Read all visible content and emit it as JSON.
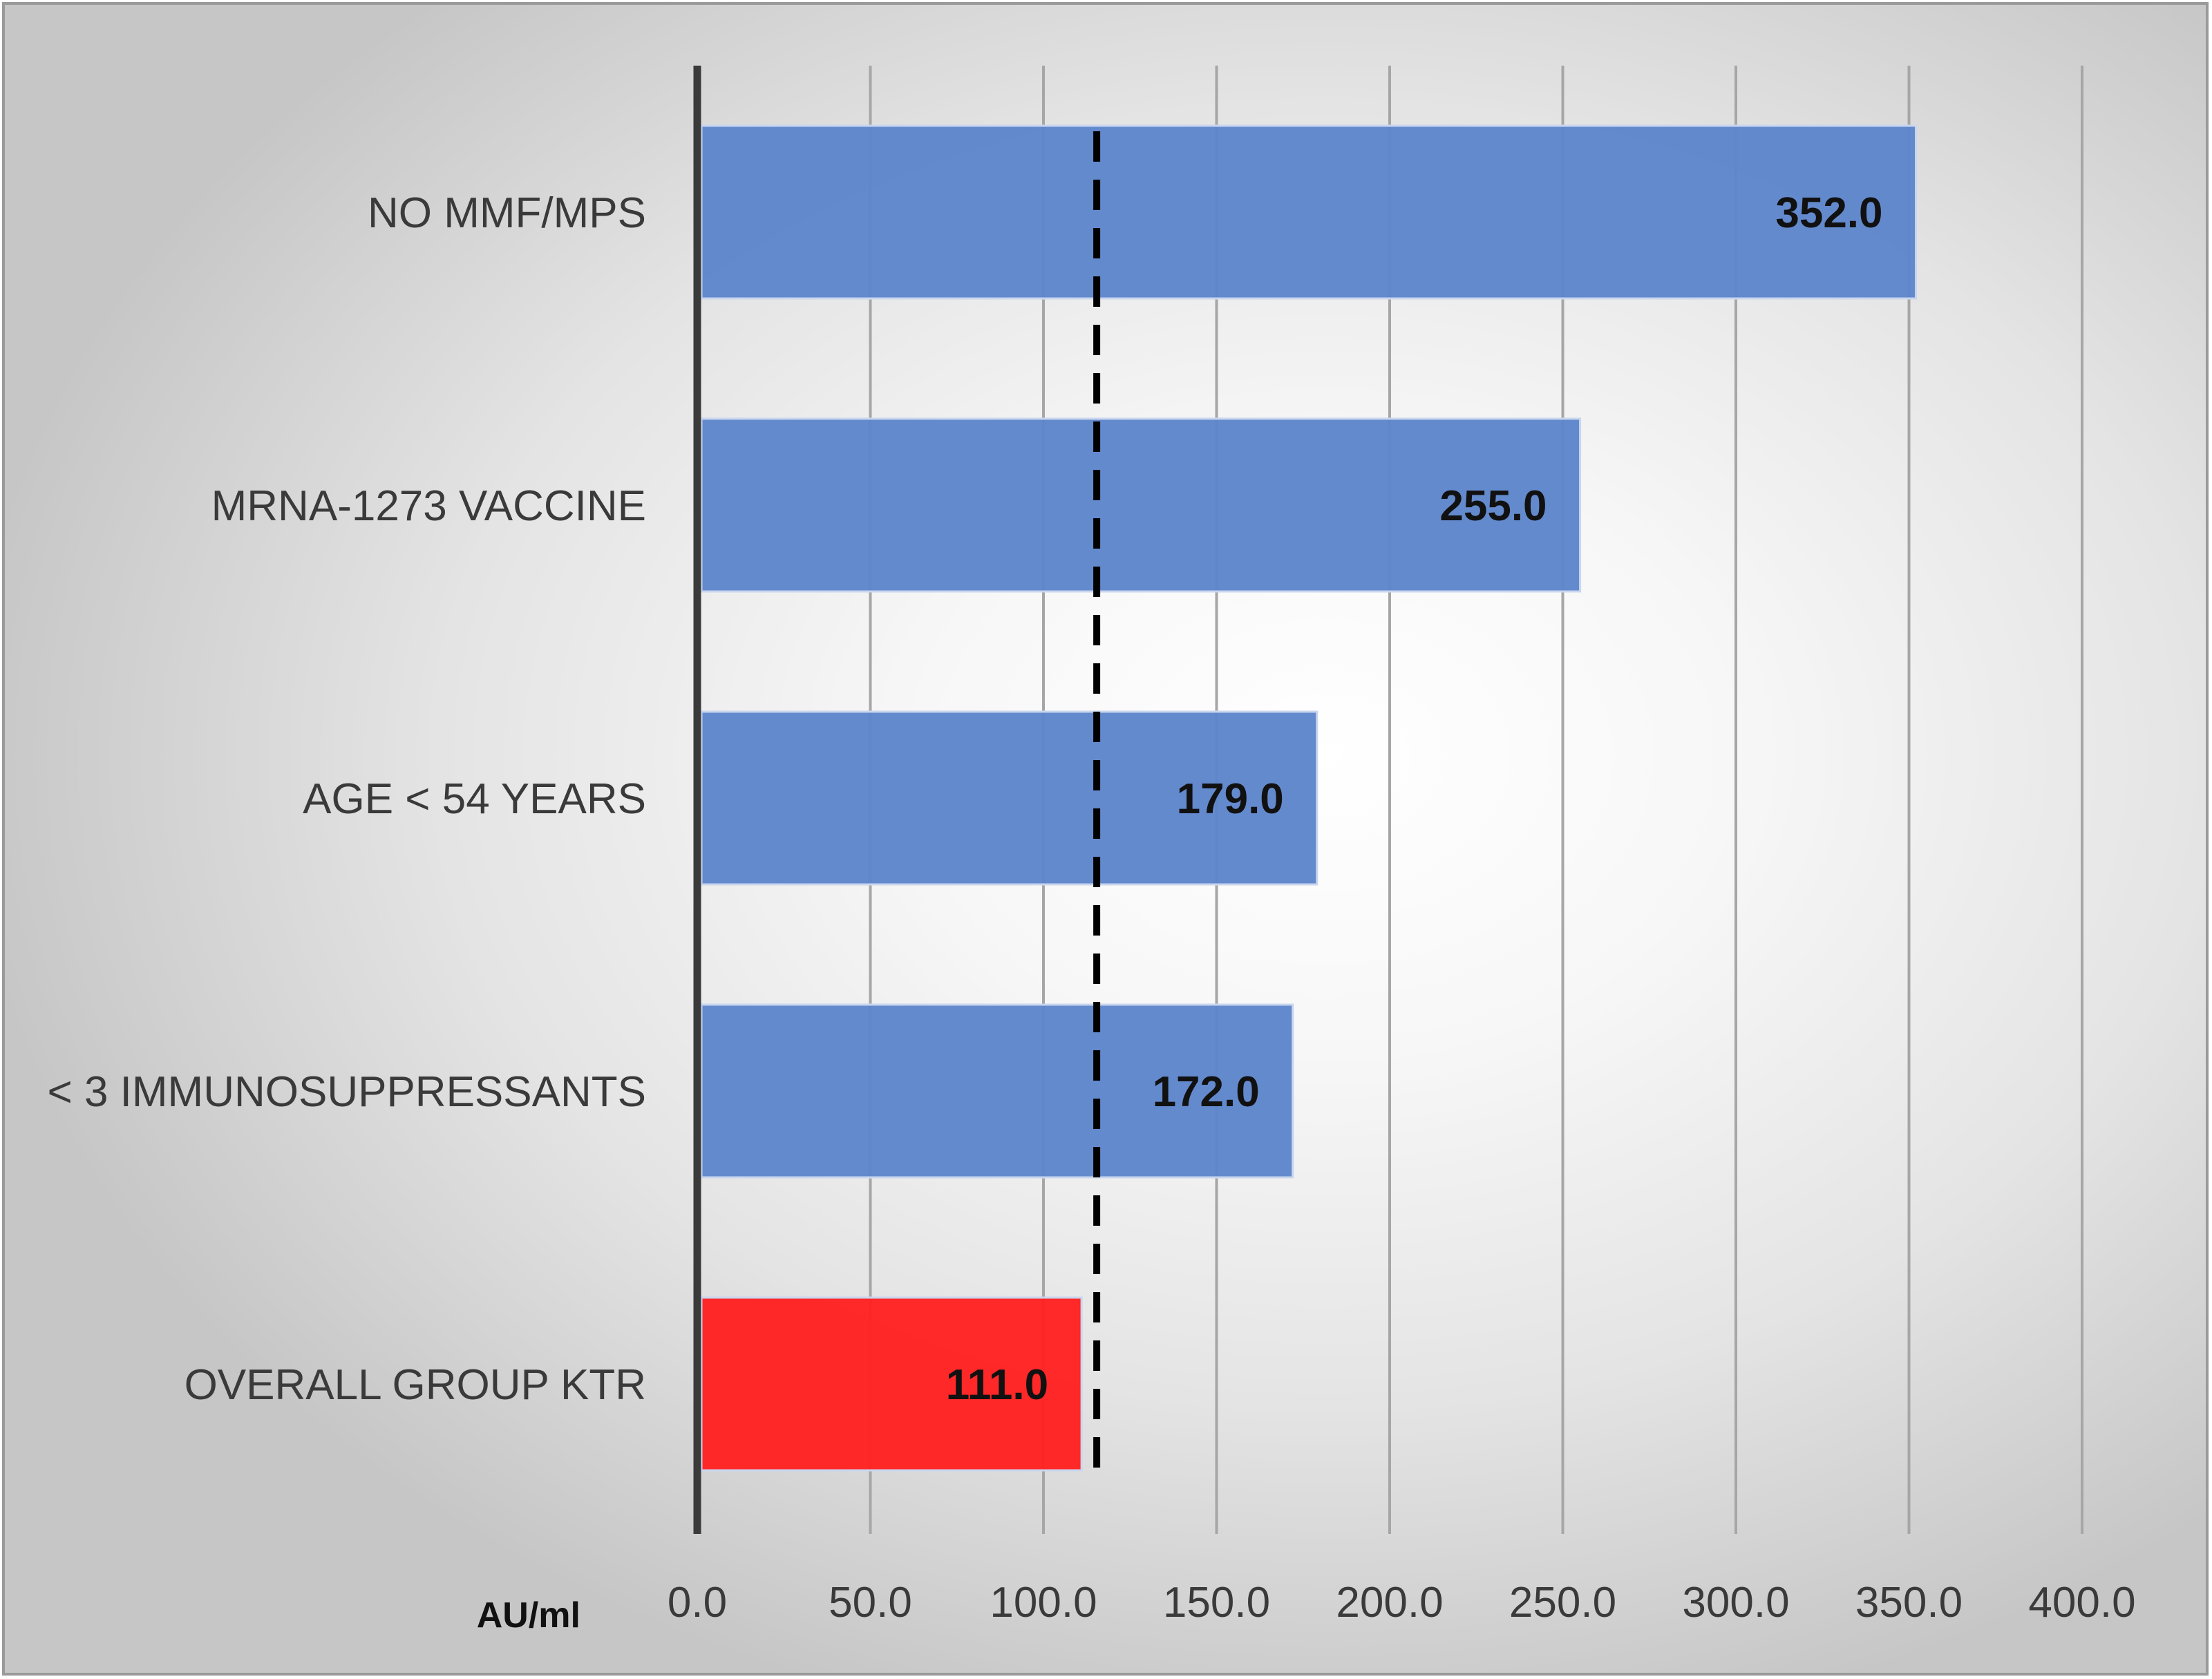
{
  "chart_data": {
    "type": "bar",
    "orientation": "horizontal",
    "categories": [
      "NO MMF/MPS",
      "MRNA-1273 VACCINE",
      "AGE < 54 YEARS",
      "< 3 IMMUNOSUPPRESSANTS",
      "OVERALL GROUP KTR"
    ],
    "values": [
      352.0,
      255.0,
      179.0,
      172.0,
      111.0
    ],
    "value_labels": [
      "352.0",
      "255.0",
      "179.0",
      "172.0",
      "111.0"
    ],
    "bar_colors": [
      "#5f86cc",
      "#5f86cc",
      "#5f86cc",
      "#5f86cc",
      "#ff2222"
    ],
    "xlim": [
      0,
      400
    ],
    "x_ticks": [
      0,
      50,
      100,
      150,
      200,
      250,
      300,
      350,
      400
    ],
    "x_tick_labels": [
      "0.0",
      "50.0",
      "100.0",
      "150.0",
      "200.0",
      "250.0",
      "300.0",
      "350.0",
      "400.0"
    ],
    "xlabel": "AU/ml",
    "reference_line": {
      "value": 111.0,
      "style": "dashed",
      "color": "#000000"
    },
    "grid": "vertical",
    "legend": "none",
    "title": ""
  }
}
